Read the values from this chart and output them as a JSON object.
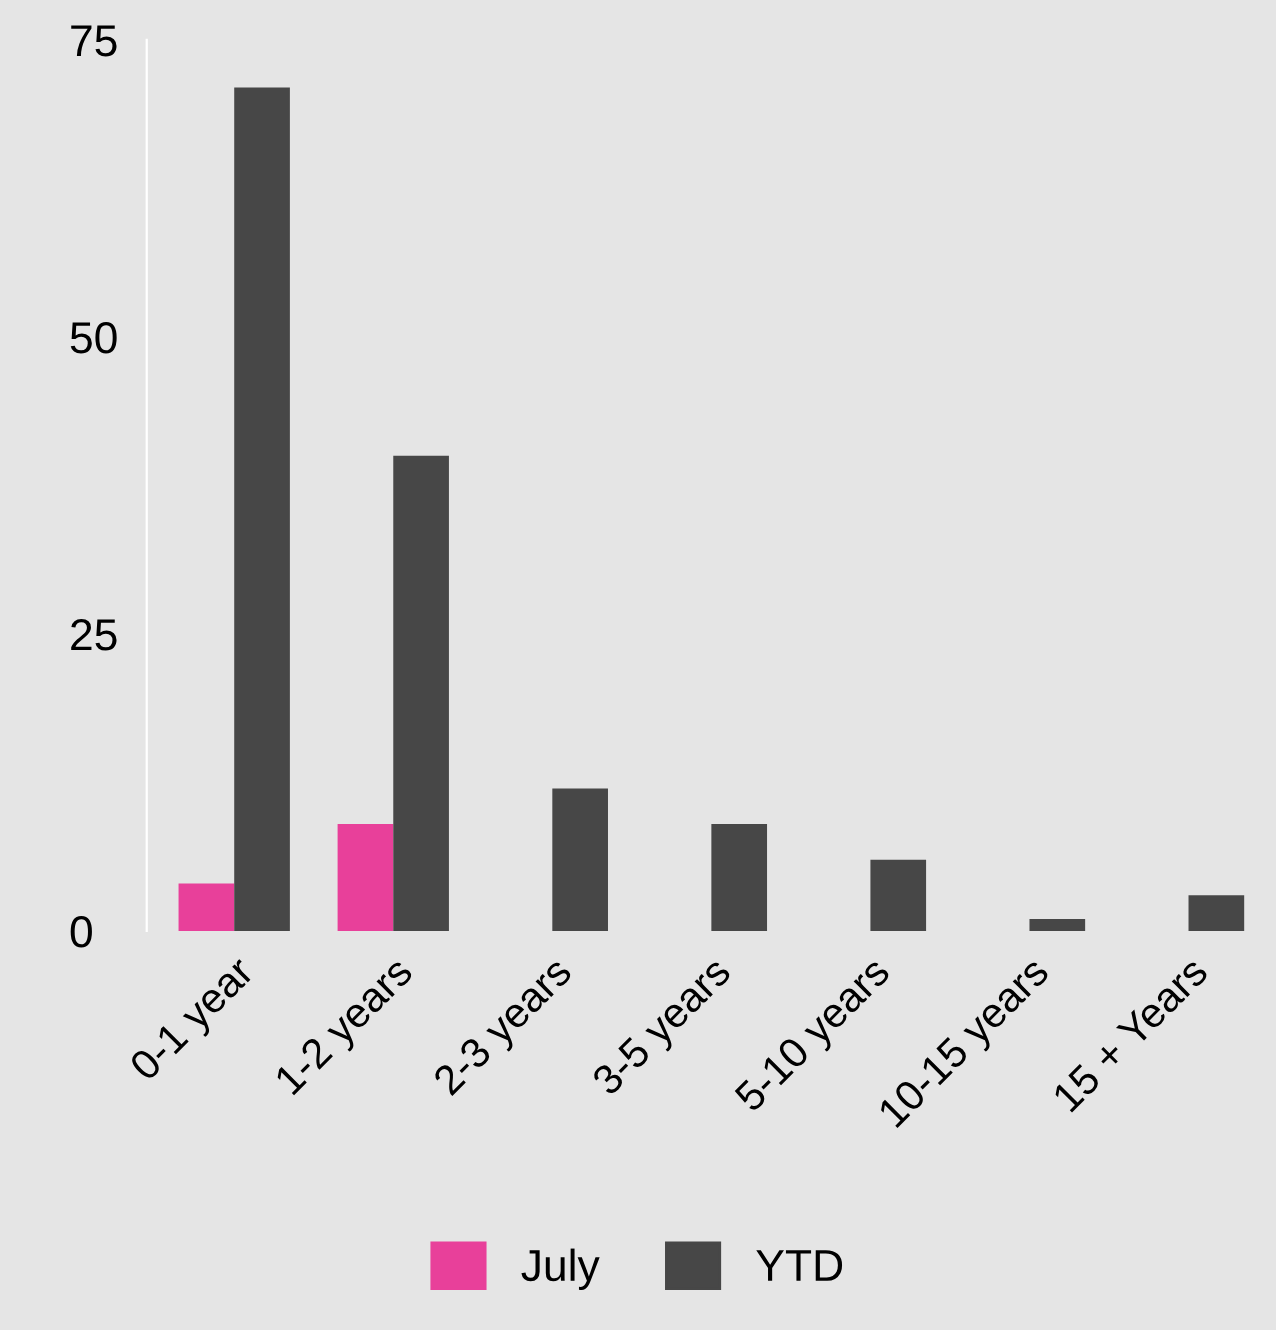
{
  "chart_data": {
    "type": "bar",
    "categories": [
      "0-1 year",
      "1-2 years",
      "2-3 years",
      "3-5 years",
      "5-10 years",
      "10-15 years",
      "15 + Years"
    ],
    "series": [
      {
        "name": "July",
        "color": "#e8409a",
        "values": [
          4,
          9,
          0,
          0,
          0,
          0,
          0
        ]
      },
      {
        "name": "YTD",
        "color": "#474747",
        "values": [
          71,
          40,
          12,
          9,
          6,
          1,
          3
        ]
      }
    ],
    "ylim": [
      0,
      75
    ],
    "yticks": [
      0,
      25,
      50,
      75
    ],
    "grid": false,
    "legend": "bottom"
  }
}
